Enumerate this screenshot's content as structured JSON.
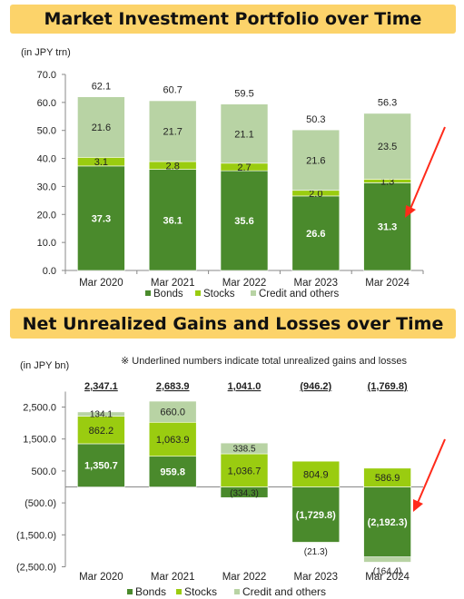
{
  "top": {
    "title": "Market Investment Portfolio over Time",
    "unit": "(in JPY trn)"
  },
  "bottom": {
    "title": "Net Unrealized Gains and Losses over Time",
    "unit": "(in JPY bn)",
    "note": "※ Underlined numbers indicate total unrealized gains and losses"
  },
  "colors": {
    "bonds": "#4a8a2c",
    "stocks": "#9acc10",
    "credit": "#b8d3a4",
    "arrow": "#ff2a1a"
  },
  "chart_data": [
    {
      "type": "bar",
      "stacked": true,
      "title": "Market Investment Portfolio over Time",
      "ylabel": "(in JPY trn)",
      "ylim": [
        0,
        70
      ],
      "yticks": [
        "0.0",
        "10.0",
        "20.0",
        "30.0",
        "40.0",
        "50.0",
        "60.0",
        "70.0"
      ],
      "categories": [
        "Mar 2020",
        "Mar 2021",
        "Mar 2022",
        "Mar 2023",
        "Mar 2024"
      ],
      "series": [
        {
          "name": "Bonds",
          "values": [
            37.3,
            36.1,
            35.6,
            26.6,
            31.3
          ],
          "labels": [
            "37.3",
            "36.1",
            "35.6",
            "26.6",
            "31.3"
          ]
        },
        {
          "name": "Stocks",
          "values": [
            3.1,
            2.8,
            2.7,
            2.0,
            1.3
          ],
          "labels": [
            "3.1",
            "2.8",
            "2.7",
            "2.0",
            "1.3"
          ]
        },
        {
          "name": "Credit and others",
          "values": [
            21.6,
            21.7,
            21.1,
            21.6,
            23.5
          ],
          "labels": [
            "21.6",
            "21.7",
            "21.1",
            "21.6",
            "23.5"
          ]
        }
      ],
      "totals": [
        62.1,
        60.7,
        59.5,
        50.3,
        56.3
      ],
      "total_labels": [
        "62.1",
        "60.7",
        "59.5",
        "50.3",
        "56.3"
      ],
      "legend": "bottom",
      "grid": false,
      "annotation": "red arrow pointing to Mar 2024 Bonds bar"
    },
    {
      "type": "bar",
      "stacked": true,
      "title": "Net Unrealized Gains and Losses over Time",
      "ylabel": "(in JPY bn)",
      "ylim": [
        -2500,
        3000
      ],
      "yticks": [
        "2,500.0",
        "1,500.0",
        "500.0",
        "(500.0)",
        "(1,500.0)",
        "(2,500.0)"
      ],
      "ytick_values": [
        2500,
        1500,
        500,
        -500,
        -1500,
        -2500
      ],
      "categories": [
        "Mar 2020",
        "Mar 2021",
        "Mar 2022",
        "Mar 2023",
        "Mar 2024"
      ],
      "series": [
        {
          "name": "Bonds",
          "values": [
            1350.7,
            959.8,
            -334.3,
            -1729.8,
            -2192.3
          ],
          "labels": [
            "1,350.7",
            "959.8",
            "(334.3)",
            "(1,729.8)",
            "(2,192.3)"
          ]
        },
        {
          "name": "Stocks",
          "values": [
            862.2,
            1063.9,
            1036.7,
            804.9,
            586.9
          ],
          "labels": [
            "862.2",
            "1,063.9",
            "1,036.7",
            "804.9",
            "586.9"
          ]
        },
        {
          "name": "Credit and others",
          "values": [
            134.1,
            660.0,
            338.5,
            -21.3,
            -164.4
          ],
          "labels": [
            "134.1",
            "660.0",
            "338.5",
            "(21.3)",
            "(164.4)"
          ]
        }
      ],
      "totals": [
        2347.1,
        2683.9,
        1041.0,
        -946.2,
        -1769.8
      ],
      "total_labels": [
        "2,347.1",
        "2,683.9",
        "1,041.0",
        "(946.2)",
        "(1,769.8)"
      ],
      "legend": "bottom",
      "grid": false,
      "annotation": "red arrow pointing to Mar 2024 Bonds bar"
    }
  ]
}
